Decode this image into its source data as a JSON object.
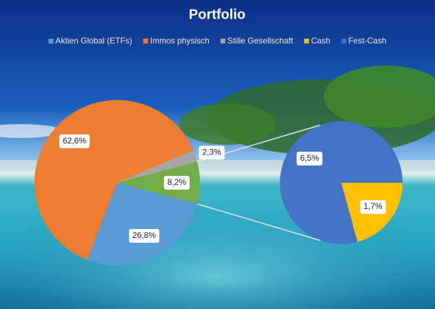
{
  "chart_data": {
    "type": "pie-of-pie",
    "title": "Portfolio",
    "categories": [
      "Aktien Global (ETFs)",
      "Immos physisch",
      "Stille Gesellschaft",
      "Cash",
      "Fest-Cash"
    ],
    "values": [
      26.8,
      62.6,
      2.3,
      1.7,
      6.5
    ],
    "value_labels": [
      "26,8%",
      "62,6%",
      "2,3%",
      "1,7%",
      "6,5%"
    ],
    "colors": [
      "#5b9bd5",
      "#ed7d31",
      "#a5a5a5",
      "#ffc000",
      "#4472c4"
    ],
    "secondary_count": 2,
    "combined": {
      "value": 8.2,
      "label": "8,2%",
      "color": "#70ad47"
    },
    "legend": "top"
  }
}
